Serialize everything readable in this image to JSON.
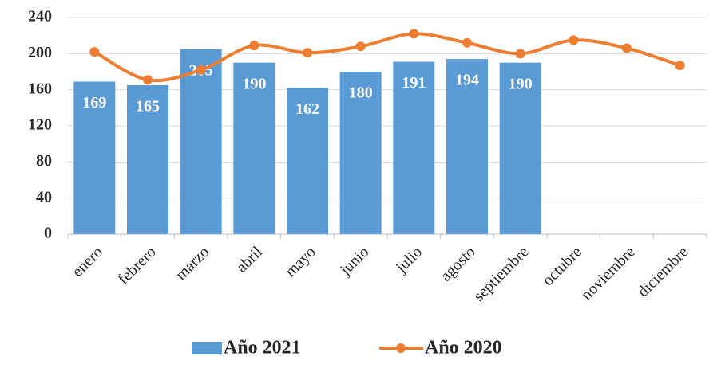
{
  "chart_data": {
    "type": "combo",
    "categories": [
      "enero",
      "febrero",
      "marzo",
      "abril",
      "mayo",
      "junio",
      "julio",
      "agosto",
      "septiembre",
      "octubre",
      "noviembre",
      "diciembre"
    ],
    "series": [
      {
        "name": "Año 2021",
        "type": "bar",
        "color": "#5b9bd5",
        "values": [
          169,
          165,
          205,
          190,
          162,
          180,
          191,
          194,
          190,
          null,
          null,
          null
        ]
      },
      {
        "name": "Año 2020",
        "type": "line",
        "color": "#ed7d31",
        "values": [
          202,
          171,
          182,
          209,
          201,
          208,
          222,
          212,
          200,
          215,
          206,
          187
        ]
      }
    ],
    "ylim": [
      0,
      240
    ],
    "yticks": [
      0,
      40,
      80,
      120,
      160,
      200,
      240
    ],
    "grid": true,
    "legend": "bottom"
  }
}
